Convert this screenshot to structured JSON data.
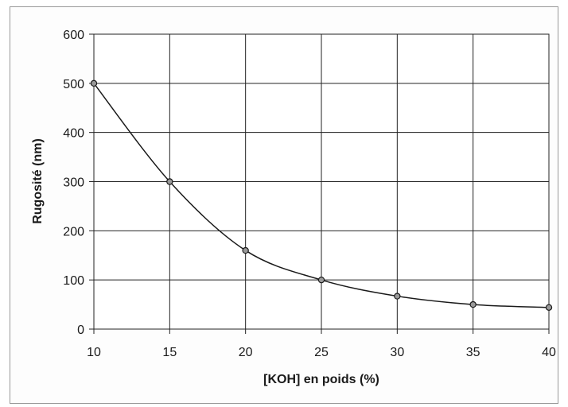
{
  "chart_data": {
    "type": "line",
    "title": "",
    "xlabel": "[KOH] en poids (%)",
    "ylabel": "Rugosité (nm)",
    "xlim": [
      10,
      40
    ],
    "ylim": [
      0,
      600
    ],
    "x_ticks": [
      10,
      15,
      20,
      25,
      30,
      35,
      40
    ],
    "y_ticks": [
      0,
      100,
      200,
      300,
      400,
      500,
      600
    ],
    "grid": true,
    "series": [
      {
        "x": [
          10,
          15,
          20,
          25,
          30,
          35,
          40
        ],
        "y": [
          500,
          300,
          160,
          100,
          67,
          50,
          44
        ],
        "color": "#1a1a1a",
        "marker": "circle",
        "smooth": true
      }
    ]
  }
}
